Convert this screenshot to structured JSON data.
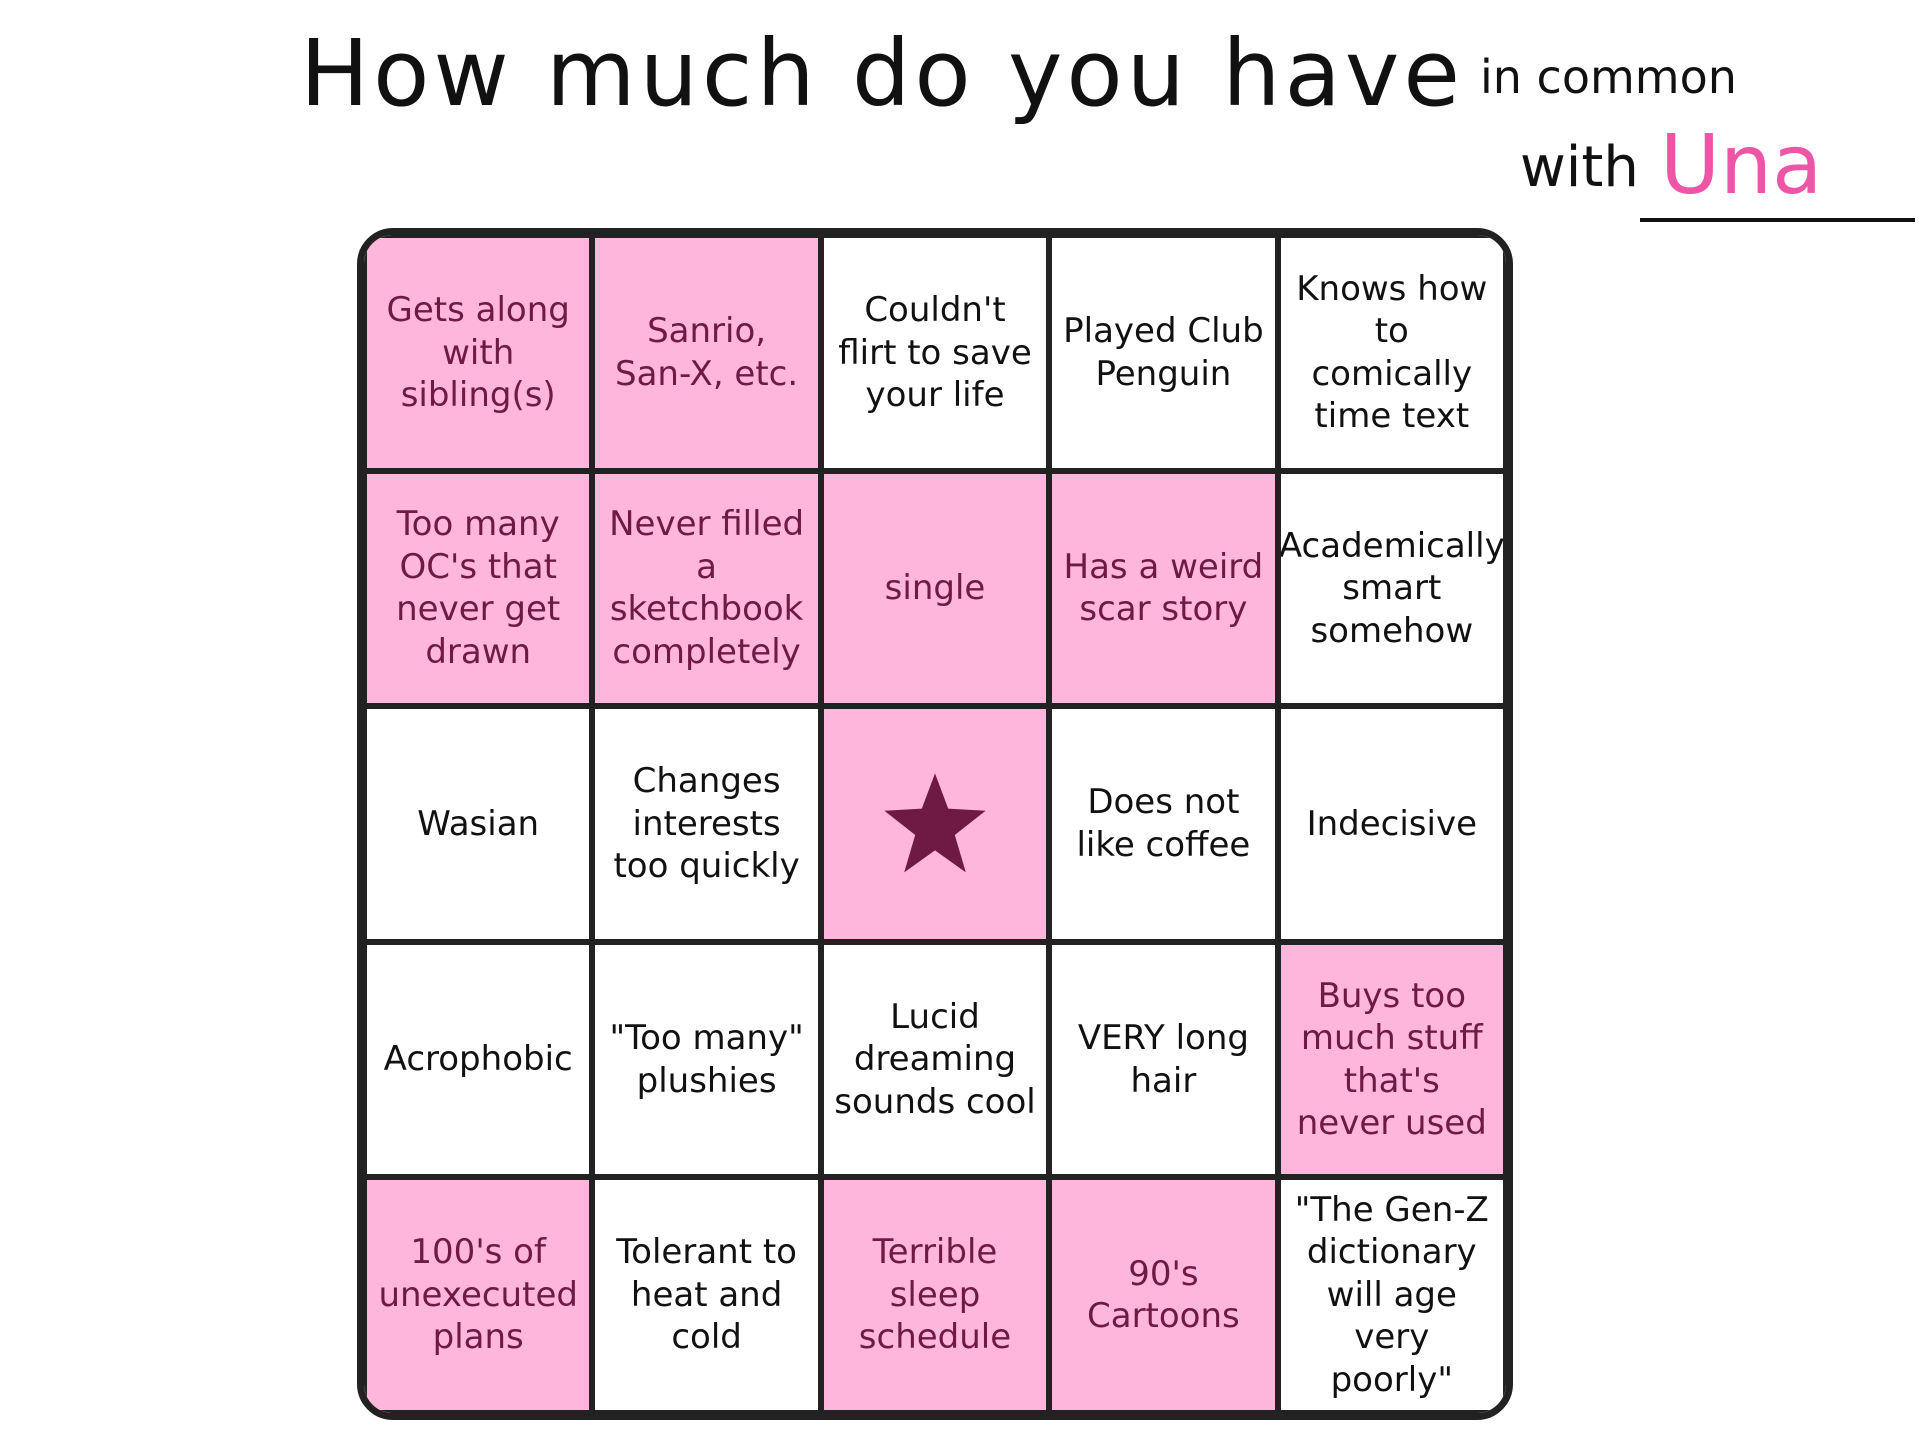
{
  "header": {
    "title": "How much do you have",
    "title_small": "in common",
    "with": "with",
    "name": "Una"
  },
  "board": {
    "marked_color": "#ffb6dc",
    "marked_text_color": "#6e1a45",
    "rows": [
      [
        {
          "text": "Gets along with sibling(s)",
          "marked": true
        },
        {
          "text": "Sanrio, San-X, etc.",
          "marked": true
        },
        {
          "text": "Couldn't flirt to save your life",
          "marked": false
        },
        {
          "text": "Played Club Penguin",
          "marked": false
        },
        {
          "text": "Knows how to comically time text",
          "marked": false
        }
      ],
      [
        {
          "text": "Too many OC's that never get drawn",
          "marked": true
        },
        {
          "text": "Never filled a sketchbook completely",
          "marked": true
        },
        {
          "text": "single",
          "marked": true
        },
        {
          "text": "Has a weird scar story",
          "marked": true
        },
        {
          "text": "Academically smart somehow",
          "marked": false
        }
      ],
      [
        {
          "text": "Wasian",
          "marked": false
        },
        {
          "text": "Changes interests too quickly",
          "marked": false
        },
        {
          "free": true,
          "marked": true
        },
        {
          "text": "Does not like coffee",
          "marked": false
        },
        {
          "text": "Indecisive",
          "marked": false
        }
      ],
      [
        {
          "text": "Acrophobic",
          "marked": false
        },
        {
          "text": "\"Too many\" plushies",
          "marked": false
        },
        {
          "text": "Lucid dreaming sounds cool",
          "marked": false
        },
        {
          "text": "VERY long hair",
          "marked": false
        },
        {
          "text": "Buys too much stuff that's never used",
          "marked": true
        }
      ],
      [
        {
          "text": "100's of unexecuted plans",
          "marked": true
        },
        {
          "text": "Tolerant to heat and cold",
          "marked": false
        },
        {
          "text": "Terrible sleep schedule",
          "marked": true
        },
        {
          "text": "90's Cartoons",
          "marked": true
        },
        {
          "text": "\"The Gen-Z dictionary will age very poorly\"",
          "marked": false
        }
      ]
    ]
  }
}
